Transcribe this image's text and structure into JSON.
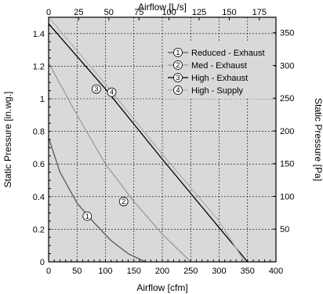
{
  "chart_data": {
    "type": "line",
    "xlabel_bottom": "Airflow [cfm]",
    "xlabel_top": "Airflow [L/s]",
    "ylabel_left": "Static Pressure [in.wg.]",
    "ylabel_right": "Static Pressure [Pa]",
    "xlim": [
      0,
      400
    ],
    "ylim": [
      0,
      1.5
    ],
    "x_ticks": [
      0,
      50,
      100,
      150,
      200,
      250,
      300,
      350,
      400
    ],
    "y_ticks": [
      0,
      0.2,
      0.4,
      0.6,
      0.8,
      1,
      1.2,
      1.4
    ],
    "x_top_ticks": [
      0,
      25,
      50,
      75,
      100,
      125,
      150,
      175
    ],
    "y_right_ticks": [
      50,
      100,
      150,
      200,
      250,
      300,
      350
    ],
    "grid": true,
    "background_color": "#d9d9d9",
    "legend_position": "top-right",
    "series": [
      {
        "name": "Reduced - Exhaust",
        "marker": "1",
        "color": "#5a5a5a",
        "x": [
          0,
          20,
          50,
          80,
          110,
          140,
          170
        ],
        "y": [
          0.76,
          0.55,
          0.36,
          0.24,
          0.13,
          0.05,
          0
        ]
      },
      {
        "name": "Med - Exhaust",
        "marker": "2",
        "color": "#9a9a9a",
        "x": [
          0,
          50,
          100,
          150,
          200,
          250
        ],
        "y": [
          1.22,
          0.9,
          0.6,
          0.37,
          0.17,
          0
        ]
      },
      {
        "name": "High - Exhaust",
        "marker": "3",
        "color": "#000000",
        "x": [
          0,
          100,
          200,
          300,
          350
        ],
        "y": [
          1.46,
          1.06,
          0.63,
          0.21,
          0
        ]
      },
      {
        "name": "High - Supply",
        "marker": "4",
        "color": "#b0b0b0",
        "x": [
          0,
          100,
          200,
          300,
          345
        ],
        "y": [
          1.52,
          1.09,
          0.66,
          0.25,
          0
        ]
      }
    ],
    "markers": [
      {
        "label": "1",
        "x": 68,
        "y": 0.28
      },
      {
        "label": "2",
        "x": 132,
        "y": 0.37
      },
      {
        "label": "3",
        "x": 84,
        "y": 1.06
      },
      {
        "label": "4",
        "x": 111,
        "y": 1.04
      }
    ]
  }
}
